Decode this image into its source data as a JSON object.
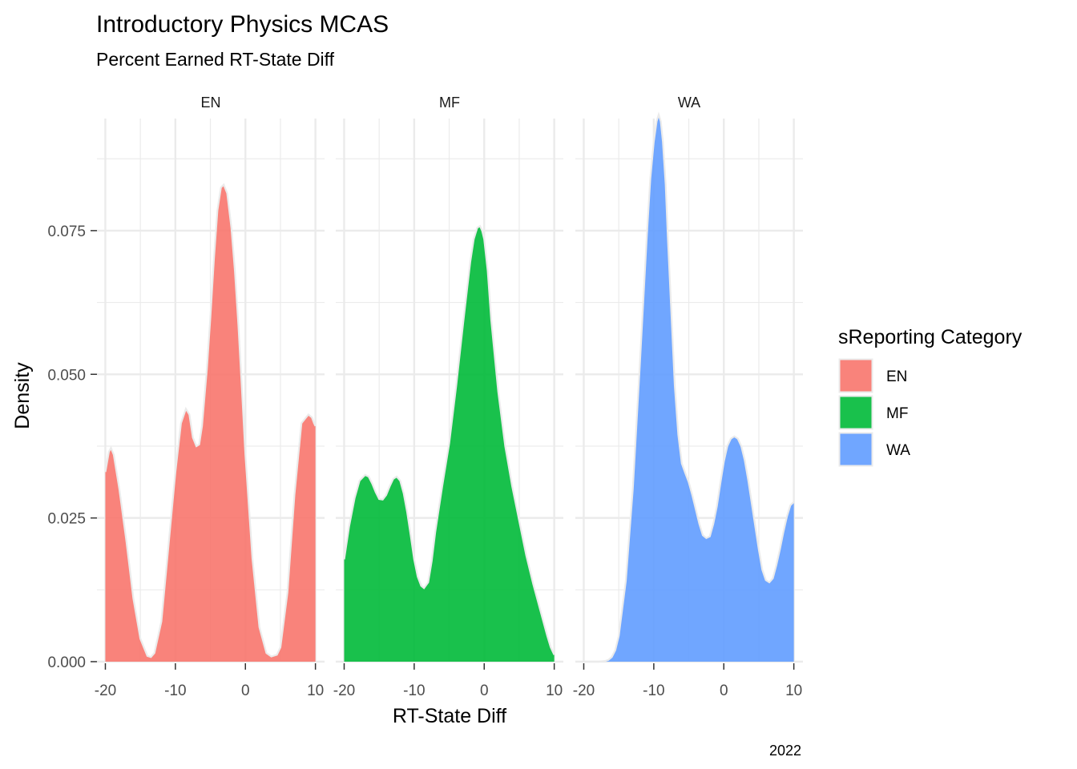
{
  "chart_data": {
    "type": "area",
    "title": "Introductory Physics MCAS",
    "subtitle": "Percent Earned RT-State Diff",
    "xlabel": "RT-State Diff",
    "ylabel": "Density",
    "caption": "2022",
    "xlim": [
      -21.2,
      11.3
    ],
    "ylim": [
      0,
      0.0945
    ],
    "x_ticks": [
      -20,
      -10,
      0,
      10
    ],
    "x_tick_labels": [
      "-20",
      "-10",
      "0",
      "10"
    ],
    "y_ticks": [
      0,
      0.025,
      0.05,
      0.075
    ],
    "y_tick_labels": [
      "0.000",
      "0.025",
      "0.050",
      "0.075"
    ],
    "grid": true,
    "legend": {
      "title": "sReporting Category",
      "position": "right",
      "entries": [
        "EN",
        "MF",
        "WA"
      ]
    },
    "colors": {
      "EN": "#F8766D",
      "MF": "#00BA38",
      "WA": "#619CFF"
    },
    "panels": [
      {
        "name": "EN",
        "x": [
          -20.0,
          -19.5,
          -19.2,
          -18.8,
          -18.0,
          -17.0,
          -16.0,
          -15.0,
          -14.0,
          -13.5,
          -13.0,
          -12.0,
          -11.0,
          -10.0,
          -9.2,
          -8.5,
          -8.0,
          -7.5,
          -7.0,
          -6.6,
          -6.2,
          -5.5,
          -5.0,
          -4.5,
          -4.0,
          -3.5,
          -3.1,
          -2.6,
          -2.0,
          -1.5,
          -1.0,
          -0.5,
          0.0,
          1.0,
          2.0,
          3.0,
          3.7,
          4.5,
          5.0,
          6.0,
          7.0,
          8.0,
          9.0,
          9.5,
          9.8,
          10.0
        ],
        "y": [
          0.033,
          0.0365,
          0.0372,
          0.036,
          0.03,
          0.021,
          0.011,
          0.004,
          0.001,
          0.0008,
          0.0015,
          0.007,
          0.02,
          0.033,
          0.0415,
          0.044,
          0.043,
          0.039,
          0.0375,
          0.0378,
          0.041,
          0.051,
          0.06,
          0.07,
          0.0785,
          0.0825,
          0.083,
          0.0815,
          0.0755,
          0.068,
          0.0585,
          0.0475,
          0.036,
          0.018,
          0.006,
          0.0015,
          0.0009,
          0.0012,
          0.0025,
          0.012,
          0.029,
          0.0415,
          0.043,
          0.0425,
          0.0415,
          0.041
        ]
      },
      {
        "name": "MF",
        "x": [
          -20.0,
          -19.3,
          -18.5,
          -17.8,
          -17.0,
          -16.5,
          -16.0,
          -15.5,
          -15.0,
          -14.5,
          -14.0,
          -13.5,
          -13.0,
          -12.5,
          -12.0,
          -11.5,
          -11.0,
          -10.5,
          -10.0,
          -9.5,
          -9.0,
          -8.6,
          -8.0,
          -7.5,
          -7.0,
          -6.0,
          -5.0,
          -4.0,
          -3.0,
          -2.0,
          -1.5,
          -1.0,
          -0.6,
          -0.3,
          0.0,
          0.5,
          1.0,
          2.0,
          3.0,
          4.0,
          5.0,
          6.0,
          7.0,
          8.0,
          9.0,
          9.5,
          10.0
        ],
        "y": [
          0.0178,
          0.0235,
          0.0285,
          0.0315,
          0.0325,
          0.0322,
          0.031,
          0.0295,
          0.0283,
          0.0282,
          0.029,
          0.0305,
          0.0318,
          0.0322,
          0.0315,
          0.0293,
          0.026,
          0.022,
          0.0178,
          0.0148,
          0.0132,
          0.0128,
          0.0138,
          0.0175,
          0.0225,
          0.0305,
          0.038,
          0.048,
          0.059,
          0.0695,
          0.0735,
          0.0755,
          0.0758,
          0.075,
          0.0735,
          0.068,
          0.0595,
          0.047,
          0.0375,
          0.0305,
          0.0245,
          0.0185,
          0.0135,
          0.009,
          0.0045,
          0.0025,
          0.0012
        ]
      },
      {
        "name": "WA",
        "x": [
          -20.0,
          -18.0,
          -17.0,
          -16.5,
          -16.0,
          -15.5,
          -15.0,
          -14.0,
          -13.0,
          -12.0,
          -11.0,
          -10.5,
          -10.0,
          -9.6,
          -9.3,
          -9.0,
          -8.7,
          -8.3,
          -8.0,
          -7.5,
          -7.0,
          -6.5,
          -6.0,
          -5.5,
          -5.0,
          -4.5,
          -4.0,
          -3.5,
          -3.0,
          -2.5,
          -2.0,
          -1.5,
          -1.0,
          -0.5,
          0.0,
          0.5,
          1.0,
          1.5,
          2.0,
          2.5,
          3.0,
          3.5,
          4.0,
          4.5,
          5.0,
          5.5,
          6.0,
          6.5,
          7.0,
          7.5,
          8.0,
          8.5,
          9.0,
          9.5,
          10.0
        ],
        "y": [
          0.0,
          0.0,
          0.0001,
          0.0003,
          0.0008,
          0.002,
          0.0045,
          0.014,
          0.03,
          0.0515,
          0.074,
          0.084,
          0.0905,
          0.094,
          0.0952,
          0.094,
          0.0905,
          0.083,
          0.074,
          0.061,
          0.048,
          0.0395,
          0.0345,
          0.0328,
          0.0312,
          0.029,
          0.0265,
          0.024,
          0.022,
          0.0215,
          0.0218,
          0.024,
          0.027,
          0.031,
          0.0348,
          0.0375,
          0.0388,
          0.0392,
          0.0388,
          0.0375,
          0.035,
          0.0315,
          0.0275,
          0.0235,
          0.0195,
          0.016,
          0.0142,
          0.0138,
          0.0145,
          0.0168,
          0.0195,
          0.0225,
          0.0252,
          0.0272,
          0.0278
        ]
      }
    ]
  }
}
